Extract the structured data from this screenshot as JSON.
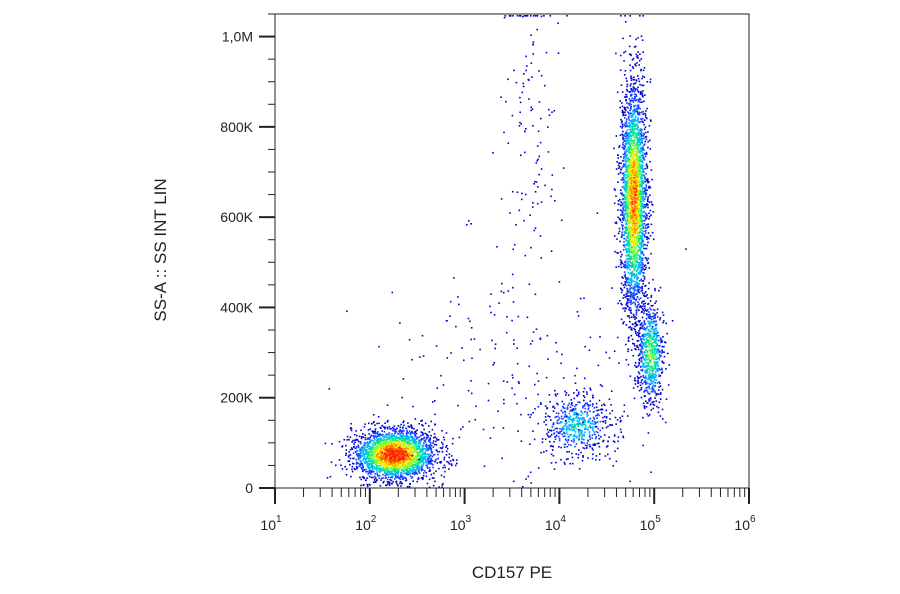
{
  "chart_data": {
    "type": "scatter",
    "xlabel": "CD157 PE",
    "ylabel": "SS-A :: SS INT LIN",
    "x_scale": "log",
    "x_range": [
      10,
      1000000
    ],
    "y_scale": "linear",
    "y_range": [
      0,
      1050000
    ],
    "x_ticks": [
      {
        "value": 10,
        "base": "10",
        "exp": "1"
      },
      {
        "value": 100,
        "base": "10",
        "exp": "2"
      },
      {
        "value": 1000,
        "base": "10",
        "exp": "3"
      },
      {
        "value": 10000,
        "base": "10",
        "exp": "4"
      },
      {
        "value": 100000,
        "base": "10",
        "exp": "5"
      },
      {
        "value": 1000000,
        "base": "10",
        "exp": "6"
      }
    ],
    "y_ticks": [
      {
        "value": 0,
        "label": "0"
      },
      {
        "value": 200000,
        "label": "200K"
      },
      {
        "value": 400000,
        "label": "400K"
      },
      {
        "value": 600000,
        "label": "600K"
      },
      {
        "value": 800000,
        "label": "800K"
      },
      {
        "value": 1000000,
        "label": "1,0M"
      }
    ],
    "density_colors": [
      "#0000cc",
      "#1a3cff",
      "#00b4ff",
      "#00e0a0",
      "#80ff30",
      "#ffee00",
      "#ff8800",
      "#ff2000"
    ],
    "populations": [
      {
        "x_center": 180,
        "x_spread_decades": 0.22,
        "y_center": 75000,
        "y_spread": 28000,
        "events": 2600,
        "peak_density": 1.0
      },
      {
        "x_center": 60000,
        "x_spread_decades": 0.07,
        "y_center": 640000,
        "y_spread": 130000,
        "events": 2800,
        "peak_density": 0.85
      },
      {
        "x_center": 90000,
        "x_spread_decades": 0.07,
        "y_center": 300000,
        "y_spread": 60000,
        "events": 700,
        "peak_density": 0.55
      },
      {
        "x_center": 15000,
        "x_spread_decades": 0.18,
        "y_center": 140000,
        "y_spread": 35000,
        "events": 550,
        "peak_density": 0.4
      },
      {
        "x_center": 5000,
        "x_spread_decades": 0.15,
        "y_center": 850000,
        "y_spread": 160000,
        "events": 120,
        "peak_density": 0.1
      },
      {
        "x_center": 4000,
        "x_spread_decades": 0.7,
        "y_center": 230000,
        "y_spread": 150000,
        "events": 220,
        "peak_density": 0.05
      }
    ]
  }
}
